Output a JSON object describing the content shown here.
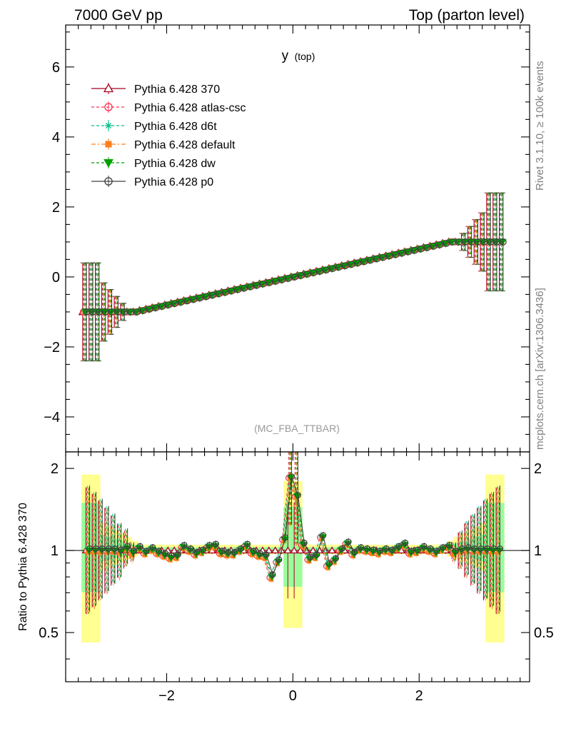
{
  "header": {
    "left": "7000 GeV pp",
    "right": "Top (parton level)"
  },
  "side_labels": {
    "rivet": "Rivet 3.1.10, ≥ 100k events",
    "source": "mcplots.cern.ch [arXiv:1306.3436]"
  },
  "chart_data": {
    "type": "line",
    "title": "y (top)",
    "title_main": "y",
    "title_sub": "(top)",
    "analysis": "(MC_FBA_TTBAR)",
    "xlim": [
      -3.6,
      3.75
    ],
    "ylim": [
      -5.0,
      7.2
    ],
    "x_ticks": [
      -2,
      0,
      2
    ],
    "x_tick_labels": [
      "−2",
      "0",
      "2"
    ],
    "y_ticks": [
      -4,
      -2,
      0,
      2,
      4,
      6
    ],
    "y_tick_labels": [
      "−4",
      "−2",
      "0",
      "2",
      "4",
      "6"
    ],
    "legend_position": "top-left",
    "series": [
      {
        "name": "Pythia 6.428 370",
        "color": "#a50021",
        "marker": "triangle-open",
        "dash": "solid"
      },
      {
        "name": "Pythia 6.428 atlas-csc",
        "color": "#ff3050",
        "marker": "circle-open",
        "dash": "dashed"
      },
      {
        "name": "Pythia 6.428 d6t",
        "color": "#00c08a",
        "marker": "star",
        "dash": "dashed"
      },
      {
        "name": "Pythia 6.428 default",
        "color": "#ff7f1a",
        "marker": "square-filled",
        "dash": "dashdot"
      },
      {
        "name": "Pythia 6.428 dw",
        "color": "#00a000",
        "marker": "triangle-down-filled",
        "dash": "dashed"
      },
      {
        "name": "Pythia 6.428 p0",
        "color": "#404040",
        "marker": "circle-open",
        "dash": "solid"
      }
    ],
    "main_points": {
      "x_from": -3.3,
      "x_to": 3.3,
      "step": 0.1,
      "plateau_low": -1.0,
      "plateau_high": 1.0,
      "slope_region": [
        -2.5,
        2.5
      ],
      "outer_error": 1.4
    },
    "ratio": {
      "ylabel": "Ratio to Pythia 6.428 370",
      "ylim": [
        0.33,
        2.3
      ],
      "y_ticks": [
        0.5,
        1,
        2
      ],
      "y_tick_labels": [
        "0.5",
        "1",
        "2"
      ],
      "reference_line": 1,
      "band_colors": {
        "inner": "#9cfc9c",
        "outer": "#ffff90"
      },
      "points": [
        {
          "x": -3.25,
          "y": 1.0
        },
        {
          "x": -3.15,
          "y": 1.0
        },
        {
          "x": -3.05,
          "y": 1.0
        },
        {
          "x": -2.95,
          "y": 1.0
        },
        {
          "x": -2.85,
          "y": 1.0
        },
        {
          "x": -2.75,
          "y": 0.99
        },
        {
          "x": -2.65,
          "y": 1.02
        },
        {
          "x": -2.55,
          "y": 0.98
        },
        {
          "x": -2.45,
          "y": 1.02
        },
        {
          "x": -2.35,
          "y": 0.98
        },
        {
          "x": -2.25,
          "y": 1.01
        },
        {
          "x": -2.15,
          "y": 0.98
        },
        {
          "x": -2.05,
          "y": 0.96
        },
        {
          "x": -1.95,
          "y": 0.94
        },
        {
          "x": -1.85,
          "y": 0.95
        },
        {
          "x": -1.75,
          "y": 1.03
        },
        {
          "x": -1.65,
          "y": 1.0
        },
        {
          "x": -1.55,
          "y": 0.97
        },
        {
          "x": -1.45,
          "y": 0.99
        },
        {
          "x": -1.35,
          "y": 1.03
        },
        {
          "x": -1.25,
          "y": 1.04
        },
        {
          "x": -1.15,
          "y": 0.98
        },
        {
          "x": -1.05,
          "y": 0.97
        },
        {
          "x": -0.95,
          "y": 0.97
        },
        {
          "x": -0.85,
          "y": 1.0
        },
        {
          "x": -0.75,
          "y": 1.04
        },
        {
          "x": -0.65,
          "y": 0.98
        },
        {
          "x": -0.55,
          "y": 0.96
        },
        {
          "x": -0.45,
          "y": 0.95
        },
        {
          "x": -0.35,
          "y": 0.8
        },
        {
          "x": -0.25,
          "y": 0.91
        },
        {
          "x": -0.15,
          "y": 1.1
        },
        {
          "x": -0.05,
          "y": 1.85
        },
        {
          "x": 0.05,
          "y": 1.58
        },
        {
          "x": 0.15,
          "y": 1.05
        },
        {
          "x": 0.25,
          "y": 0.93
        },
        {
          "x": 0.35,
          "y": 0.95
        },
        {
          "x": 0.45,
          "y": 1.12
        },
        {
          "x": 0.55,
          "y": 0.88
        },
        {
          "x": 0.65,
          "y": 0.92
        },
        {
          "x": 0.75,
          "y": 1.0
        },
        {
          "x": 0.85,
          "y": 1.06
        },
        {
          "x": 0.95,
          "y": 0.97
        },
        {
          "x": 1.05,
          "y": 1.01
        },
        {
          "x": 1.15,
          "y": 1.0
        },
        {
          "x": 1.25,
          "y": 0.99
        },
        {
          "x": 1.35,
          "y": 0.98
        },
        {
          "x": 1.45,
          "y": 1.0
        },
        {
          "x": 1.55,
          "y": 0.99
        },
        {
          "x": 1.65,
          "y": 1.02
        },
        {
          "x": 1.75,
          "y": 1.05
        },
        {
          "x": 1.85,
          "y": 0.98
        },
        {
          "x": 1.95,
          "y": 0.99
        },
        {
          "x": 2.05,
          "y": 1.02
        },
        {
          "x": 2.15,
          "y": 1.0
        },
        {
          "x": 2.25,
          "y": 0.98
        },
        {
          "x": 2.35,
          "y": 1.01
        },
        {
          "x": 2.45,
          "y": 1.03
        },
        {
          "x": 2.55,
          "y": 0.98
        },
        {
          "x": 2.65,
          "y": 1.0
        },
        {
          "x": 2.75,
          "y": 1.01
        },
        {
          "x": 2.85,
          "y": 1.0
        },
        {
          "x": 2.95,
          "y": 1.0
        },
        {
          "x": 3.05,
          "y": 1.0
        },
        {
          "x": 3.15,
          "y": 1.0
        },
        {
          "x": 3.25,
          "y": 1.0
        }
      ]
    }
  }
}
